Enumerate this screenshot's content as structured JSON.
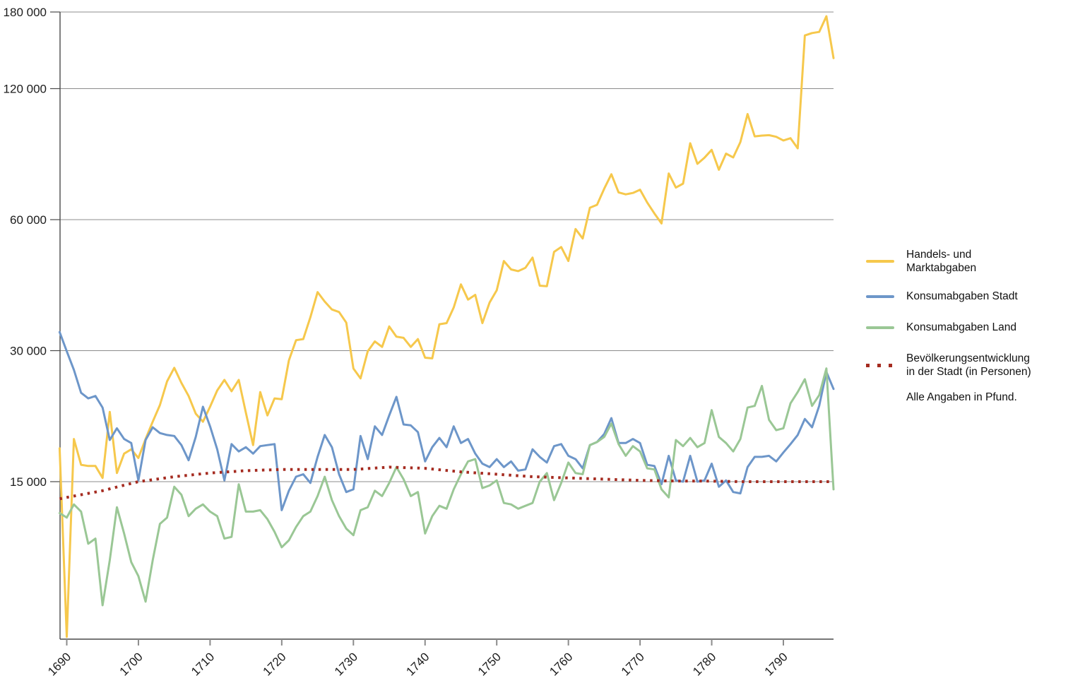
{
  "page": {
    "background": "#ffffff"
  },
  "chart_data": {
    "type": "line",
    "title": "",
    "xlabel": "",
    "ylabel": "",
    "note": "Alle Angaben in Pfund.",
    "x_axis": {
      "ticks": [
        1690,
        1700,
        1710,
        1720,
        1730,
        1740,
        1750,
        1760,
        1770,
        1780,
        1790
      ]
    },
    "y_axis": {
      "scale": "log",
      "ticks": [
        15000,
        30000,
        60000,
        120000,
        180000
      ],
      "tick_labels": [
        "15 000",
        "30 000",
        "60 000",
        "120 000",
        "180 000"
      ],
      "range_bottom": 6500,
      "grid": true
    },
    "x": [
      1689,
      1690,
      1691,
      1692,
      1693,
      1694,
      1695,
      1696,
      1697,
      1698,
      1699,
      1700,
      1701,
      1702,
      1703,
      1704,
      1705,
      1706,
      1707,
      1708,
      1709,
      1710,
      1711,
      1712,
      1713,
      1714,
      1715,
      1716,
      1717,
      1718,
      1719,
      1720,
      1721,
      1722,
      1723,
      1724,
      1725,
      1726,
      1727,
      1728,
      1729,
      1730,
      1731,
      1732,
      1733,
      1734,
      1735,
      1736,
      1737,
      1738,
      1739,
      1740,
      1741,
      1742,
      1743,
      1744,
      1745,
      1746,
      1747,
      1748,
      1749,
      1750,
      1751,
      1752,
      1753,
      1754,
      1755,
      1756,
      1757,
      1758,
      1759,
      1760,
      1761,
      1762,
      1763,
      1764,
      1765,
      1766,
      1767,
      1768,
      1769,
      1770,
      1771,
      1772,
      1773,
      1774,
      1775,
      1776,
      1777,
      1778,
      1779,
      1780,
      1781,
      1782,
      1783,
      1784,
      1785,
      1786,
      1787,
      1788,
      1789,
      1790,
      1791,
      1792,
      1793,
      1794,
      1795,
      1796,
      1797
    ],
    "series": [
      {
        "name": "Handels- und Marktabgaben",
        "color": "#F6C84C",
        "style": "solid",
        "values": [
          17900,
          6600,
          18800,
          16400,
          16300,
          16300,
          15300,
          21700,
          15700,
          17400,
          17800,
          17000,
          18800,
          20600,
          22500,
          25500,
          27400,
          25300,
          23600,
          21500,
          20600,
          22300,
          24300,
          25700,
          24200,
          25700,
          21600,
          18200,
          24100,
          21300,
          23300,
          23200,
          28500,
          31700,
          31900,
          35800,
          40900,
          38900,
          37300,
          36800,
          34800,
          27300,
          25900,
          29900,
          31500,
          30600,
          34100,
          32300,
          32100,
          30600,
          31900,
          28900,
          28800,
          34500,
          34700,
          37700,
          42600,
          39300,
          40300,
          34700,
          38700,
          41300,
          48200,
          46100,
          45700,
          46500,
          49100,
          42300,
          42200,
          50600,
          51900,
          48200,
          57100,
          54300,
          63900,
          64900,
          70700,
          76300,
          69300,
          68600,
          69100,
          70300,
          65700,
          62000,
          58800,
          76600,
          71100,
          72600,
          89900,
          80600,
          83300,
          86800,
          78100,
          85100,
          83400,
          90400,
          104900,
          93200,
          93600,
          93800,
          93000,
          91200,
          92300,
          87500,
          159000,
          161000,
          162000,
          176000,
          141000
        ]
      },
      {
        "name": "Konsumabgaben Stadt",
        "color": "#6D96C9",
        "style": "solid",
        "values": [
          33100,
          29900,
          27100,
          24000,
          23300,
          23600,
          22200,
          18700,
          19900,
          18800,
          18400,
          15100,
          18700,
          20000,
          19400,
          19200,
          19100,
          18200,
          16800,
          19000,
          22300,
          20100,
          17800,
          15100,
          18300,
          17600,
          18000,
          17400,
          18100,
          18200,
          18300,
          12900,
          14300,
          15400,
          15600,
          14900,
          17100,
          19200,
          18000,
          15600,
          14200,
          14400,
          19100,
          16900,
          20100,
          19200,
          21300,
          23500,
          20300,
          20200,
          19500,
          16700,
          18000,
          18900,
          18000,
          20100,
          18400,
          18800,
          17400,
          16500,
          16200,
          16900,
          16200,
          16700,
          15900,
          16000,
          17800,
          17100,
          16600,
          18100,
          18300,
          17200,
          16900,
          16100,
          18200,
          18500,
          19300,
          21000,
          18400,
          18400,
          18800,
          18400,
          16400,
          16300,
          14800,
          17200,
          15100,
          15000,
          17200,
          15000,
          15100,
          16500,
          14600,
          15100,
          14200,
          14100,
          16200,
          17100,
          17100,
          17200,
          16700,
          17500,
          18300,
          19200,
          20900,
          20000,
          22400,
          26800,
          24500
        ]
      },
      {
        "name": "Konsumabgaben Land",
        "color": "#9AC795",
        "style": "solid",
        "values": [
          12700,
          12400,
          13300,
          12800,
          10800,
          11100,
          7800,
          9900,
          13100,
          11400,
          9800,
          9100,
          7950,
          9900,
          12000,
          12400,
          14600,
          14000,
          12500,
          13000,
          13300,
          12800,
          12500,
          11100,
          11200,
          14800,
          12800,
          12800,
          12900,
          12300,
          11500,
          10600,
          11000,
          11800,
          12500,
          12800,
          13900,
          15400,
          13600,
          12500,
          11700,
          11300,
          12900,
          13100,
          14300,
          13900,
          14900,
          16200,
          15200,
          13900,
          14200,
          11400,
          12500,
          13200,
          13000,
          14400,
          15600,
          16700,
          16900,
          14500,
          14700,
          15100,
          13400,
          13300,
          13000,
          13200,
          13400,
          15000,
          15700,
          13600,
          14900,
          16600,
          15700,
          15600,
          18200,
          18500,
          19000,
          20400,
          18300,
          17200,
          18100,
          17600,
          16100,
          16000,
          14400,
          13800,
          18700,
          18100,
          18900,
          18000,
          18400,
          21900,
          19000,
          18400,
          17600,
          18800,
          22200,
          22400,
          24900,
          20800,
          19700,
          19900,
          22700,
          24100,
          25800,
          22400,
          23700,
          27300,
          14400
        ]
      },
      {
        "name": "Bevölkerungsentwicklung in der Stadt (in Personen)",
        "color": "#A52B20",
        "style": "dotted",
        "values": [
          13700,
          13800,
          13900,
          14000,
          14100,
          14200,
          14300,
          14440,
          14580,
          14720,
          14860,
          15000,
          15080,
          15160,
          15240,
          15320,
          15400,
          15460,
          15520,
          15580,
          15640,
          15700,
          15740,
          15780,
          15820,
          15860,
          15900,
          15920,
          15940,
          15960,
          15980,
          16000,
          16000,
          16000,
          16000,
          16000,
          16000,
          16000,
          16000,
          16000,
          16000,
          16000,
          16040,
          16080,
          16120,
          16160,
          16200,
          16180,
          16160,
          16140,
          16120,
          16100,
          16040,
          15980,
          15920,
          15860,
          15800,
          15760,
          15720,
          15680,
          15640,
          15600,
          15560,
          15520,
          15480,
          15440,
          15400,
          15380,
          15360,
          15340,
          15320,
          15300,
          15280,
          15260,
          15240,
          15220,
          15200,
          15180,
          15160,
          15140,
          15120,
          15100,
          15090,
          15080,
          15070,
          15060,
          15050,
          15050,
          15050,
          15050,
          15050,
          15040,
          15030,
          15020,
          15010,
          15000,
          15000,
          15000,
          15000,
          15000,
          15000,
          15000,
          15000,
          15000,
          15000,
          15000,
          15000,
          15000,
          15000
        ]
      }
    ]
  },
  "legend": {
    "items": [
      {
        "id": "handels-marktabgaben",
        "label": "Handels- und\nMarktabgaben",
        "swatch": "line",
        "color": "#F6C84C"
      },
      {
        "id": "konsumabgaben-stadt",
        "label": "Konsumabgaben Stadt",
        "swatch": "line",
        "color": "#6D96C9"
      },
      {
        "id": "konsumabgaben-land",
        "label": "Konsumabgaben Land",
        "swatch": "line",
        "color": "#9AC795"
      },
      {
        "id": "bevoelkerungsentwicklung",
        "label": "Bevölkerungsentwicklung\nin der Stadt (in Personen)",
        "swatch": "dots",
        "color": "#A52B20"
      }
    ],
    "note": "Alle Angaben in Pfund."
  }
}
